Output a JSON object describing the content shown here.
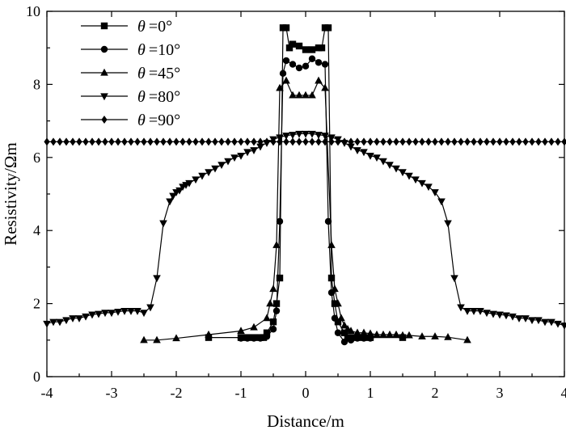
{
  "chart_data": {
    "type": "line",
    "xlabel": "Distance/m",
    "ylabel": "Resistivity/Ωm",
    "xlim": [
      -4,
      4
    ],
    "ylim": [
      0,
      10
    ],
    "xticks": [
      -4,
      -3,
      -2,
      -1,
      0,
      1,
      2,
      3,
      4
    ],
    "yticks": [
      0,
      2,
      4,
      6,
      8,
      10
    ],
    "grid": false,
    "legend_position": "top-left",
    "series": [
      {
        "name": "θ =0°",
        "legend_symbol": "θ",
        "legend_value": "=0°",
        "marker": "square",
        "x": [
          -1.5,
          -1.0,
          -0.9,
          -0.8,
          -0.7,
          -0.65,
          -0.6,
          -0.5,
          -0.45,
          -0.4,
          -0.35,
          -0.3,
          -0.25,
          -0.2,
          -0.1,
          0.0,
          0.1,
          0.2,
          0.25,
          0.3,
          0.35,
          0.4,
          0.45,
          0.5,
          0.6,
          0.65,
          0.7,
          0.8,
          0.9,
          1.0,
          1.5
        ],
        "y": [
          1.07,
          1.07,
          1.07,
          1.07,
          1.07,
          1.07,
          1.2,
          1.5,
          2.0,
          2.7,
          9.55,
          9.55,
          9.0,
          9.1,
          9.05,
          8.95,
          8.95,
          9.0,
          9.0,
          9.55,
          9.55,
          2.7,
          2.0,
          1.5,
          1.2,
          1.07,
          1.07,
          1.07,
          1.07,
          1.07,
          1.07
        ]
      },
      {
        "name": "θ =10°",
        "legend_symbol": "θ",
        "legend_value": "=10°",
        "marker": "circle",
        "x": [
          -1.0,
          -0.9,
          -0.8,
          -0.7,
          -0.6,
          -0.5,
          -0.45,
          -0.4,
          -0.35,
          -0.3,
          -0.2,
          -0.1,
          0.0,
          0.1,
          0.2,
          0.3,
          0.35,
          0.4,
          0.45,
          0.5,
          0.6,
          0.7,
          0.8,
          0.9,
          1.0
        ],
        "y": [
          1.05,
          1.05,
          1.05,
          1.05,
          1.1,
          1.3,
          1.8,
          4.25,
          8.3,
          8.65,
          8.55,
          8.45,
          8.5,
          8.7,
          8.6,
          8.55,
          4.25,
          2.3,
          1.6,
          1.2,
          0.95,
          1.0,
          1.05,
          1.05,
          1.05
        ]
      },
      {
        "name": "θ =45°",
        "legend_symbol": "θ",
        "legend_value": "=45°",
        "marker": "triangle-up",
        "x": [
          -2.5,
          -2.3,
          -2.0,
          -1.5,
          -1.0,
          -0.8,
          -0.6,
          -0.55,
          -0.5,
          -0.45,
          -0.4,
          -0.3,
          -0.2,
          -0.1,
          0.0,
          0.1,
          0.2,
          0.3,
          0.4,
          0.45,
          0.5,
          0.55,
          0.6,
          0.65,
          0.7,
          0.8,
          0.9,
          1.0,
          1.1,
          1.2,
          1.3,
          1.4,
          1.5,
          1.6,
          1.8,
          2.0,
          2.2,
          2.5
        ],
        "y": [
          1.0,
          1.0,
          1.05,
          1.15,
          1.25,
          1.35,
          1.6,
          2.0,
          2.4,
          3.6,
          7.9,
          8.1,
          7.7,
          7.7,
          7.7,
          7.7,
          8.1,
          7.9,
          3.6,
          2.4,
          2.0,
          1.6,
          1.4,
          1.3,
          1.25,
          1.2,
          1.2,
          1.18,
          1.15,
          1.15,
          1.15,
          1.15,
          1.13,
          1.13,
          1.1,
          1.1,
          1.08,
          1.0
        ]
      },
      {
        "name": "θ =80°",
        "legend_symbol": "θ",
        "legend_value": "=80°",
        "marker": "triangle-down",
        "x": [
          -4.0,
          -3.9,
          -3.8,
          -3.7,
          -3.6,
          -3.5,
          -3.4,
          -3.3,
          -3.2,
          -3.1,
          -3.0,
          -2.9,
          -2.8,
          -2.7,
          -2.6,
          -2.5,
          -2.4,
          -2.3,
          -2.2,
          -2.1,
          -2.05,
          -2.0,
          -1.95,
          -1.9,
          -1.85,
          -1.8,
          -1.7,
          -1.6,
          -1.5,
          -1.4,
          -1.3,
          -1.2,
          -1.1,
          -1.0,
          -0.9,
          -0.8,
          -0.7,
          -0.6,
          -0.5,
          -0.4,
          -0.3,
          -0.2,
          -0.1,
          0.0,
          0.1,
          0.2,
          0.3,
          0.4,
          0.5,
          0.6,
          0.7,
          0.8,
          0.9,
          1.0,
          1.1,
          1.2,
          1.3,
          1.4,
          1.5,
          1.6,
          1.7,
          1.8,
          1.9,
          2.0,
          2.1,
          2.2,
          2.3,
          2.4,
          2.5,
          2.6,
          2.7,
          2.8,
          2.9,
          3.0,
          3.1,
          3.2,
          3.3,
          3.4,
          3.5,
          3.6,
          3.7,
          3.8,
          3.9,
          4.0
        ],
        "y": [
          1.45,
          1.5,
          1.5,
          1.55,
          1.6,
          1.6,
          1.65,
          1.7,
          1.72,
          1.75,
          1.75,
          1.78,
          1.8,
          1.8,
          1.8,
          1.75,
          1.9,
          2.7,
          4.2,
          4.8,
          4.95,
          5.05,
          5.1,
          5.2,
          5.25,
          5.3,
          5.4,
          5.5,
          5.6,
          5.7,
          5.8,
          5.9,
          6.0,
          6.05,
          6.15,
          6.2,
          6.3,
          6.4,
          6.5,
          6.55,
          6.6,
          6.62,
          6.65,
          6.65,
          6.65,
          6.62,
          6.6,
          6.55,
          6.5,
          6.4,
          6.3,
          6.2,
          6.15,
          6.05,
          6.0,
          5.9,
          5.8,
          5.7,
          5.6,
          5.5,
          5.4,
          5.3,
          5.2,
          5.05,
          4.8,
          4.2,
          2.7,
          1.9,
          1.8,
          1.8,
          1.8,
          1.75,
          1.72,
          1.7,
          1.68,
          1.65,
          1.6,
          1.6,
          1.55,
          1.55,
          1.5,
          1.5,
          1.45,
          1.4
        ]
      },
      {
        "name": "θ =90°",
        "legend_symbol": "θ",
        "legend_value": "=90°",
        "marker": "diamond",
        "x": [
          -4.0,
          -3.9,
          -3.8,
          -3.7,
          -3.6,
          -3.5,
          -3.4,
          -3.3,
          -3.2,
          -3.1,
          -3.0,
          -2.9,
          -2.8,
          -2.7,
          -2.6,
          -2.5,
          -2.4,
          -2.3,
          -2.2,
          -2.1,
          -2.0,
          -1.9,
          -1.8,
          -1.7,
          -1.6,
          -1.5,
          -1.4,
          -1.3,
          -1.2,
          -1.1,
          -1.0,
          -0.9,
          -0.8,
          -0.7,
          -0.6,
          -0.5,
          -0.4,
          -0.3,
          -0.2,
          -0.1,
          0.0,
          0.1,
          0.2,
          0.3,
          0.4,
          0.5,
          0.6,
          0.7,
          0.8,
          0.9,
          1.0,
          1.1,
          1.2,
          1.3,
          1.4,
          1.5,
          1.6,
          1.7,
          1.8,
          1.9,
          2.0,
          2.1,
          2.2,
          2.3,
          2.4,
          2.5,
          2.6,
          2.7,
          2.8,
          2.9,
          3.0,
          3.1,
          3.2,
          3.3,
          3.4,
          3.5,
          3.6,
          3.7,
          3.8,
          3.9,
          4.0
        ],
        "y": [
          6.43,
          6.43,
          6.43,
          6.43,
          6.43,
          6.43,
          6.43,
          6.43,
          6.43,
          6.43,
          6.43,
          6.43,
          6.43,
          6.43,
          6.43,
          6.43,
          6.43,
          6.43,
          6.43,
          6.43,
          6.43,
          6.43,
          6.43,
          6.43,
          6.43,
          6.43,
          6.43,
          6.43,
          6.43,
          6.43,
          6.43,
          6.43,
          6.43,
          6.43,
          6.43,
          6.43,
          6.43,
          6.43,
          6.43,
          6.43,
          6.43,
          6.43,
          6.43,
          6.43,
          6.43,
          6.43,
          6.43,
          6.43,
          6.43,
          6.43,
          6.43,
          6.43,
          6.43,
          6.43,
          6.43,
          6.43,
          6.43,
          6.43,
          6.43,
          6.43,
          6.43,
          6.43,
          6.43,
          6.43,
          6.43,
          6.43,
          6.43,
          6.43,
          6.43,
          6.43,
          6.43,
          6.43,
          6.43,
          6.43,
          6.43,
          6.43,
          6.43,
          6.43,
          6.43,
          6.43,
          6.43
        ]
      }
    ]
  },
  "colors": {
    "line": "#000000",
    "marker": "#000000",
    "background": "#ffffff"
  }
}
